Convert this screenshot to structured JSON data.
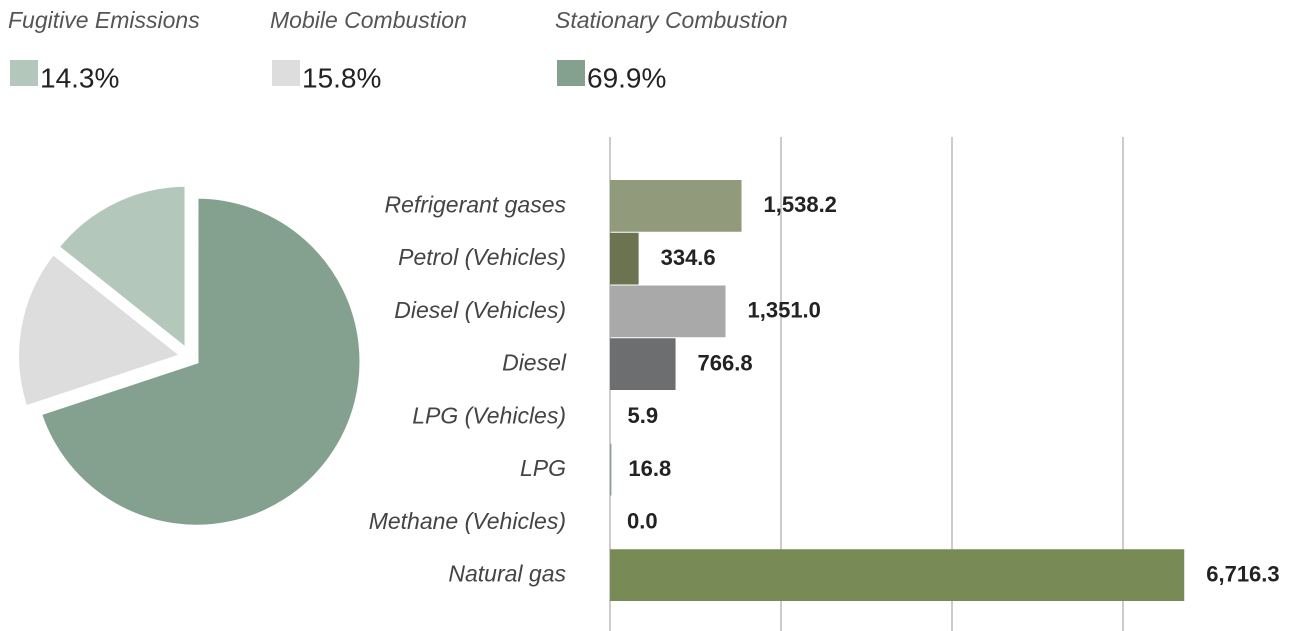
{
  "chart_data": [
    {
      "type": "pie",
      "series": [
        {
          "name": "Fugitive Emissions",
          "color": "#b4c7bb",
          "values": [
            14.3
          ],
          "value_labels": [
            "14.3%"
          ]
        },
        {
          "name": "Mobile Combustion",
          "color": "#dddddd",
          "values": [
            15.8
          ],
          "value_labels": [
            "15.8%"
          ]
        },
        {
          "name": "Stationary Combustion",
          "color": "#84a190",
          "values": [
            69.9
          ],
          "value_labels": [
            "69.9%"
          ]
        }
      ]
    },
    {
      "type": "hbar",
      "categories": [
        "Refrigerant gases",
        "Petrol (Vehicles)",
        "Diesel (Vehicles)",
        "Diesel",
        "LPG (Vehicles)",
        "LPG",
        "Methane (Vehicles)",
        "Natural gas"
      ],
      "values": [
        1538.2,
        334.6,
        1351.0,
        766.8,
        5.9,
        16.8,
        0.0,
        6716.3
      ],
      "value_labels": [
        "1,538.2",
        "334.6",
        "1,351.0",
        "766.8",
        "5.9",
        "16.8",
        "0.0",
        "6,716.3"
      ],
      "colors": [
        "#919a7a",
        "#6b7350",
        "#a8a9a8",
        "#6d6e70",
        "#c8d3c8",
        "#8aa394",
        "#b0b0b0",
        "#788a55"
      ],
      "xlim": [
        0,
        8000
      ],
      "xticks": [
        0,
        2000,
        4000,
        6000
      ],
      "grid": true
    }
  ]
}
